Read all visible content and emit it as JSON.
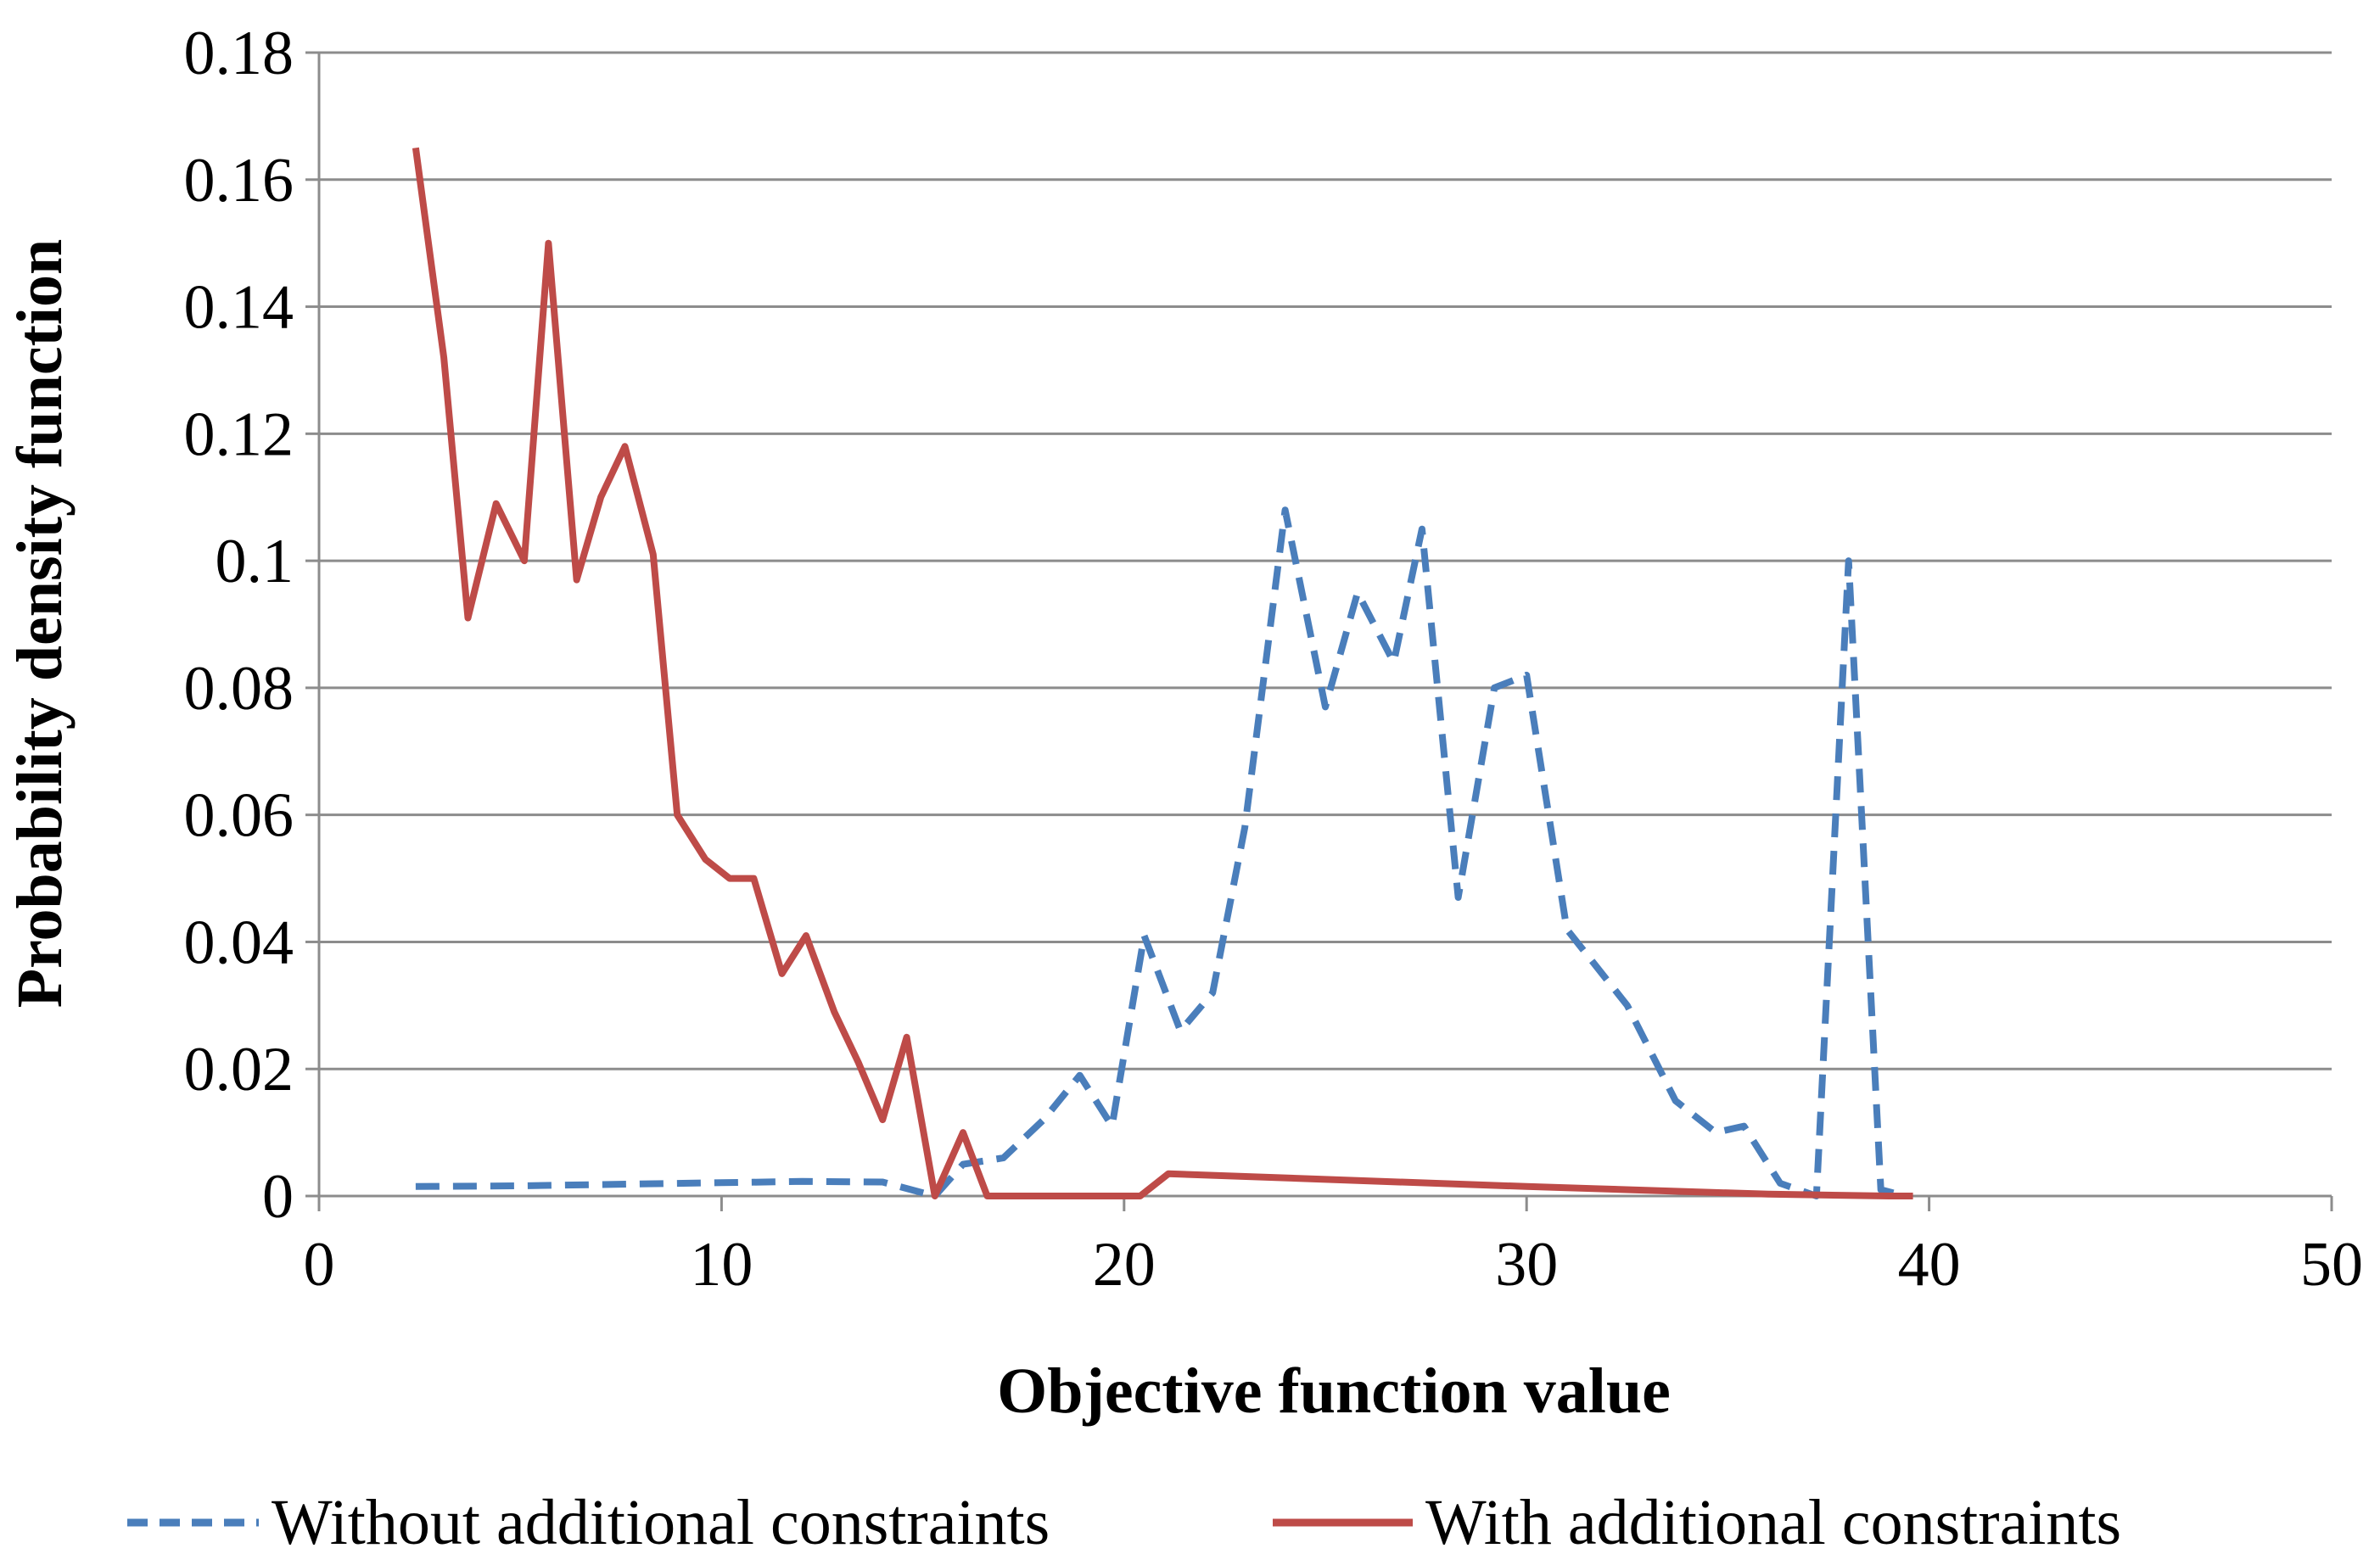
{
  "chart_data": {
    "type": "line",
    "xlabel": "Objective function value",
    "ylabel": "Probability density function",
    "xlim": [
      0,
      50
    ],
    "ylim": [
      0,
      0.18
    ],
    "x_ticks": [
      0,
      10,
      20,
      30,
      40,
      50
    ],
    "x_tick_labels": [
      "0",
      "10",
      "20",
      "30",
      "40",
      "50"
    ],
    "y_ticks": [
      0,
      0.02,
      0.04,
      0.06,
      0.08,
      0.1,
      0.12,
      0.14,
      0.16,
      0.18
    ],
    "y_tick_labels": [
      "0",
      "0.02",
      "0.04",
      "0.06",
      "0.08",
      "0.1",
      "0.12",
      "0.14",
      "0.16",
      "0.18"
    ],
    "grid": "horizontal",
    "legend_position": "bottom",
    "series": [
      {
        "name": "Without additional constraints",
        "color": "#4a7ebb",
        "style": "dashed",
        "points": [
          [
            2.4,
            0.0015
          ],
          [
            5,
            0.0016
          ],
          [
            10,
            0.0021
          ],
          [
            12,
            0.0023
          ],
          [
            14,
            0.0022
          ],
          [
            15.3,
            0
          ],
          [
            16,
            0.005
          ],
          [
            17,
            0.006
          ],
          [
            18,
            0.012
          ],
          [
            18.9,
            0.019
          ],
          [
            19.7,
            0.011
          ],
          [
            20.5,
            0.041
          ],
          [
            21.4,
            0.026
          ],
          [
            22.2,
            0.032
          ],
          [
            23,
            0.058
          ],
          [
            24,
            0.108
          ],
          [
            25,
            0.077
          ],
          [
            25.8,
            0.095
          ],
          [
            26.7,
            0.084
          ],
          [
            27.4,
            0.105
          ],
          [
            28.3,
            0.047
          ],
          [
            29.2,
            0.08
          ],
          [
            30,
            0.082
          ],
          [
            31,
            0.042
          ],
          [
            32.5,
            0.03
          ],
          [
            33.7,
            0.015
          ],
          [
            34.7,
            0.01
          ],
          [
            35.4,
            0.011
          ],
          [
            36.3,
            0.002
          ],
          [
            37.2,
            0
          ],
          [
            38,
            0.1
          ],
          [
            38.8,
            0.001
          ],
          [
            39.4,
            0
          ]
        ]
      },
      {
        "name": "With additional constraints",
        "color": "#be4b48",
        "style": "solid",
        "points": [
          [
            2.4,
            0.165
          ],
          [
            3.1,
            0.132
          ],
          [
            3.7,
            0.091
          ],
          [
            4.4,
            0.109
          ],
          [
            5.1,
            0.1
          ],
          [
            5.7,
            0.15
          ],
          [
            6.4,
            0.097
          ],
          [
            7,
            0.11
          ],
          [
            7.6,
            0.118
          ],
          [
            8.3,
            0.101
          ],
          [
            8.9,
            0.06
          ],
          [
            9.6,
            0.053
          ],
          [
            10.2,
            0.05
          ],
          [
            10.8,
            0.05
          ],
          [
            11.5,
            0.035
          ],
          [
            12.1,
            0.041
          ],
          [
            12.8,
            0.029
          ],
          [
            13.4,
            0.021
          ],
          [
            14,
            0.012
          ],
          [
            14.6,
            0.025
          ],
          [
            15.3,
            0
          ],
          [
            16,
            0.01
          ],
          [
            16.6,
            0
          ],
          [
            20.4,
            0
          ],
          [
            21.1,
            0.0035
          ],
          [
            30,
            0.0015
          ],
          [
            36,
            0.0003
          ],
          [
            39,
            0
          ],
          [
            39.6,
            0
          ]
        ]
      }
    ]
  }
}
